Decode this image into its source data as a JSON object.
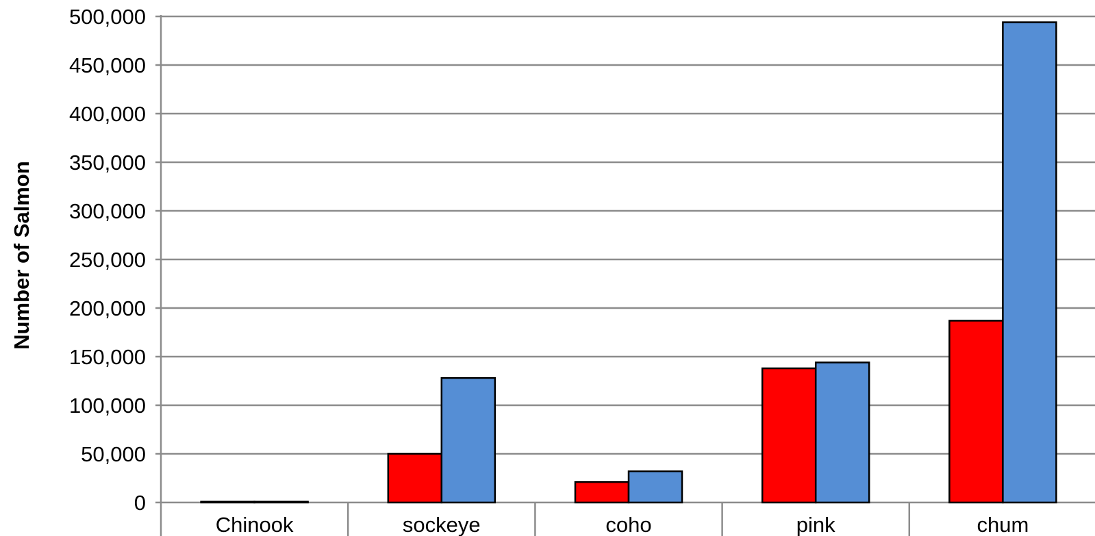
{
  "chart_data": {
    "type": "bar",
    "title": "",
    "xlabel": "",
    "ylabel": "Number of Salmon",
    "categories": [
      "Chinook",
      "sockeye",
      "coho",
      "pink",
      "chum"
    ],
    "series": [
      {
        "color": "#ff0000",
        "values": [
          800,
          50000,
          21000,
          138000,
          187000
        ]
      },
      {
        "color": "#558ed5",
        "values": [
          800,
          128000,
          32000,
          144000,
          494000
        ]
      }
    ],
    "ylim": [
      0,
      500000
    ],
    "yticks": [
      "0",
      "50,000",
      "100,000",
      "150,000",
      "200,000",
      "250,000",
      "300,000",
      "350,000",
      "400,000",
      "450,000",
      "500,000"
    ],
    "ytick_values": [
      0,
      50000,
      100000,
      150000,
      200000,
      250000,
      300000,
      350000,
      400000,
      450000,
      500000
    ],
    "grid": true,
    "legend": "none"
  }
}
